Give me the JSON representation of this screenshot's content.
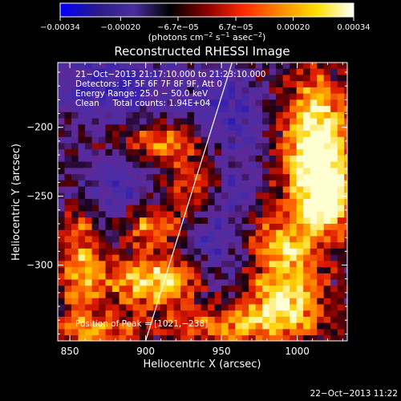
{
  "chart_data": {
    "type": "heatmap",
    "title": "Reconstructed RHESSI Image",
    "xlabel": "Heliocentric X (arcsec)",
    "ylabel": "Heliocentric Y (arcsec)",
    "xlim": [
      842,
      1033
    ],
    "ylim": [
      -355,
      -153
    ],
    "x_ticks": [
      850,
      900,
      950,
      1000
    ],
    "y_ticks": [
      -200,
      -250,
      -300
    ],
    "x_tick_labels": [
      "850",
      "900",
      "950",
      "1000"
    ],
    "y_tick_labels": [
      "−200",
      "−250",
      "−300"
    ],
    "colorbar": {
      "range": [
        -0.00034,
        0.00034
      ],
      "ticks": [
        -0.00034,
        -0.0002,
        -6.7e-05,
        6.7e-05,
        0.0002,
        0.00034
      ],
      "tick_labels": [
        "−0.00034",
        "−0.00020",
        "−6.7e−05",
        "6.7e−05",
        "0.00020",
        "0.00034"
      ],
      "units_prefix": "(photons cm",
      "units_exp1": "−2",
      "units_mid": " s",
      "units_exp2": "−1",
      "units_mid2": " asec",
      "units_exp3": "−2",
      "units_suffix": ")",
      "colors": [
        "#0000ff",
        "#2a1a8a",
        "#4a2ea0",
        "#000000",
        "#8b0000",
        "#ff2a00",
        "#ff8800",
        "#ffe000",
        "#ffffff"
      ]
    },
    "info_lines": [
      "21−Oct−2013 21:17:10.000 to 21:23:10.000",
      "Detectors: 3F 5F 6F 7F 8F 9F, Att 0",
      "Energy Range: 25.0 − 50.0 keV",
      "Clean     Total counts: 1.94E+04"
    ],
    "peak_label": "Position of Peak = [1021,−238]",
    "limb_line": [
      [
        900,
        -355
      ],
      [
        957,
        -153
      ]
    ],
    "hot_regions": [
      {
        "x": 1012,
        "y": -210,
        "sx": 16,
        "sy": 32,
        "amp": 1.0
      },
      {
        "x": 1020,
        "y": -250,
        "sx": 12,
        "sy": 18,
        "amp": 0.8
      },
      {
        "x": 990,
        "y": -290,
        "sx": 18,
        "sy": 22,
        "amp": 0.7
      },
      {
        "x": 992,
        "y": -330,
        "sx": 20,
        "sy": 14,
        "amp": 0.65
      },
      {
        "x": 905,
        "y": -312,
        "sx": 22,
        "sy": 13,
        "amp": 0.8
      },
      {
        "x": 905,
        "y": -272,
        "sx": 14,
        "sy": 12,
        "amp": 0.6
      },
      {
        "x": 858,
        "y": -300,
        "sx": 10,
        "sy": 35,
        "amp": 0.55
      },
      {
        "x": 910,
        "y": -210,
        "sx": 22,
        "sy": 10,
        "amp": 0.55
      },
      {
        "x": 930,
        "y": -240,
        "sx": 14,
        "sy": 14,
        "amp": 0.45
      },
      {
        "x": 955,
        "y": -345,
        "sx": 30,
        "sy": 10,
        "amp": 0.5
      },
      {
        "x": 870,
        "y": -348,
        "sx": 20,
        "sy": 8,
        "amp": 0.45
      }
    ],
    "cool_regions": [
      {
        "x": 880,
        "y": -170,
        "sx": 28,
        "sy": 18,
        "amp": 0.8
      },
      {
        "x": 955,
        "y": -195,
        "sx": 20,
        "sy": 25,
        "amp": 0.7
      },
      {
        "x": 880,
        "y": -245,
        "sx": 22,
        "sy": 18,
        "amp": 0.6
      },
      {
        "x": 950,
        "y": -290,
        "sx": 18,
        "sy": 22,
        "amp": 0.6
      },
      {
        "x": 960,
        "y": -245,
        "sx": 10,
        "sy": 10,
        "amp": 0.5
      }
    ]
  },
  "timestamp": "22−Oct−2013 11:22"
}
